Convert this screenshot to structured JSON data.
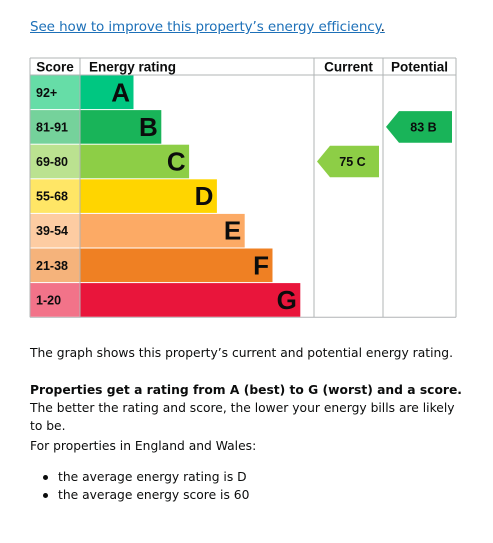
{
  "link": {
    "text": "See how to improve this property’s energy efficiency",
    "trailing": "."
  },
  "chart_data": {
    "type": "bar",
    "headers": {
      "score": "Score",
      "rating": "Energy rating",
      "current": "Current",
      "potential": "Potential"
    },
    "bands": [
      {
        "score": "92+",
        "letter": "A",
        "color": "#00c781",
        "score_bg": "#66dda7",
        "level": 1
      },
      {
        "score": "81-91",
        "letter": "B",
        "color": "#19b459",
        "score_bg": "#75d29b",
        "level": 2
      },
      {
        "score": "69-80",
        "letter": "C",
        "color": "#8dce46",
        "score_bg": "#bbe290",
        "level": 3
      },
      {
        "score": "55-68",
        "letter": "D",
        "color": "#ffd500",
        "score_bg": "#ffe666",
        "level": 4
      },
      {
        "score": "39-54",
        "letter": "E",
        "color": "#fcaa65",
        "score_bg": "#fdcca2",
        "level": 5
      },
      {
        "score": "21-38",
        "letter": "F",
        "color": "#ef8023",
        "score_bg": "#f5b37b",
        "level": 6
      },
      {
        "score": "1-20",
        "letter": "G",
        "color": "#e9153b",
        "score_bg": "#f27389",
        "level": 7
      }
    ],
    "current": {
      "value": 75,
      "letter": "C",
      "label": "75 C",
      "band": "C",
      "color": "#8dce46"
    },
    "potential": {
      "value": 83,
      "letter": "B",
      "label": "83 B",
      "band": "B",
      "color": "#19b459"
    }
  },
  "text": {
    "para1": "The graph shows this property’s current and potential energy rating.",
    "para2_bold": "Properties get a rating from A (best) to G (worst) and a score.",
    "para2_rest": " The better the rating and score, the lower your energy bills are likely to be.",
    "para3": "For properties in England and Wales:",
    "bullets": [
      "the average energy rating is D",
      "the average energy score is 60"
    ]
  }
}
